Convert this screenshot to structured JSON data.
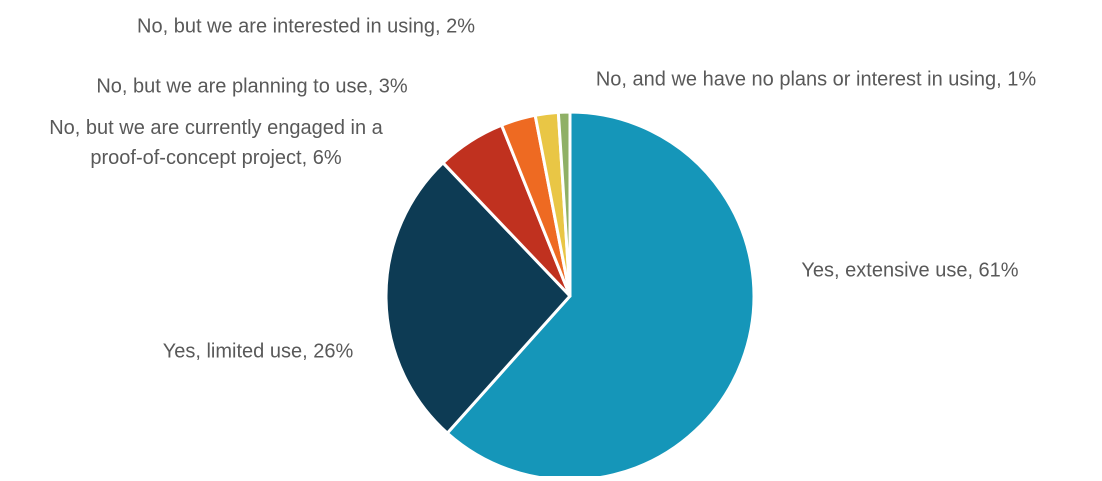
{
  "chart_data": {
    "type": "pie",
    "title": "",
    "slices": [
      {
        "label": "Yes, extensive use, 61%",
        "value": 61,
        "color": "#1596b9"
      },
      {
        "label": "Yes, limited use, 26%",
        "value": 26,
        "color": "#0d3b54"
      },
      {
        "label": [
          "No, but we are currently engaged in a",
          "proof-of-concept project, 6%"
        ],
        "value": 6,
        "color": "#c0311f"
      },
      {
        "label": "No, but we are planning to use, 3%",
        "value": 3,
        "color": "#ee6a22"
      },
      {
        "label": "No, but we are interested in using, 2%",
        "value": 2,
        "color": "#e9c645"
      },
      {
        "label": "No, and we have no plans or interest in using, 1%",
        "value": 1,
        "color": "#8fb066"
      }
    ],
    "start": "12 o'clock",
    "direction": "clockwise",
    "legend": "none"
  }
}
